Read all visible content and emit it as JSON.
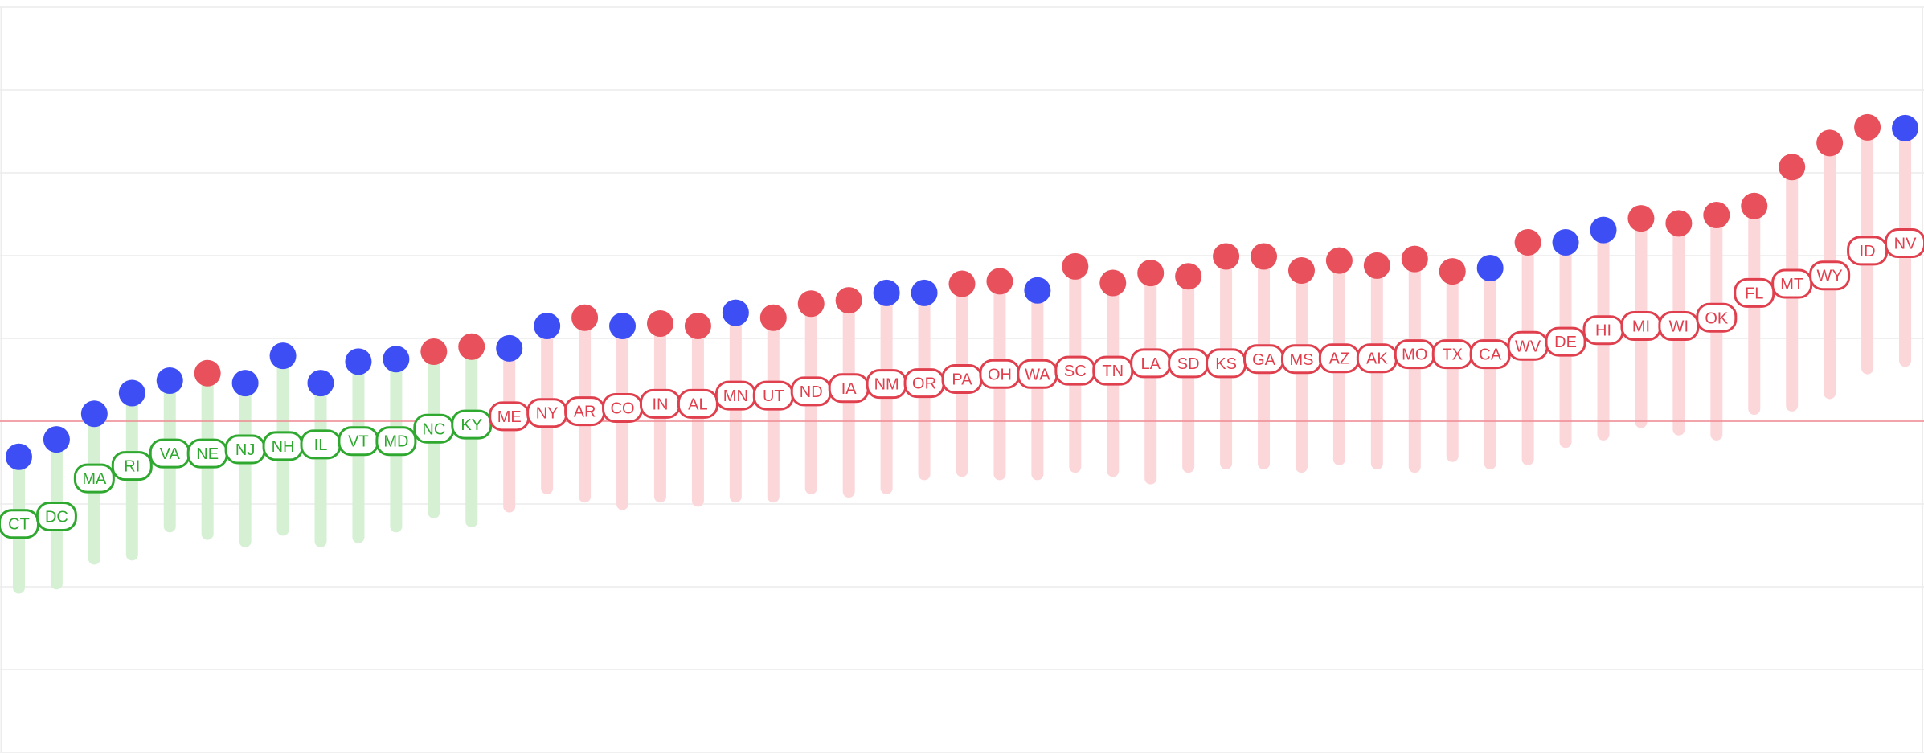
{
  "chart_data": {
    "type": "range-lollipop",
    "categories": [
      "CT",
      "DC",
      "MA",
      "RI",
      "VA",
      "NE",
      "NJ",
      "NH",
      "IL",
      "VT",
      "MD",
      "NC",
      "KY",
      "ME",
      "NY",
      "AR",
      "CO",
      "IN",
      "AL",
      "MN",
      "UT",
      "ND",
      "IA",
      "NM",
      "OR",
      "PA",
      "OH",
      "WA",
      "SC",
      "TN",
      "LA",
      "SD",
      "KS",
      "GA",
      "MS",
      "AZ",
      "AK",
      "MO",
      "TX",
      "CA",
      "WV",
      "DE",
      "HI",
      "MI",
      "WI",
      "OK",
      "FL",
      "MT",
      "WY",
      "ID",
      "NV"
    ],
    "values": [
      -1.24,
      -1.15,
      -0.69,
      -0.54,
      -0.39,
      -0.39,
      -0.34,
      -0.3,
      -0.28,
      -0.24,
      -0.24,
      -0.09,
      -0.04,
      0.06,
      0.1,
      0.12,
      0.16,
      0.21,
      0.21,
      0.31,
      0.31,
      0.36,
      0.4,
      0.45,
      0.46,
      0.51,
      0.57,
      0.57,
      0.61,
      0.61,
      0.7,
      0.7,
      0.7,
      0.75,
      0.75,
      0.76,
      0.76,
      0.81,
      0.81,
      0.81,
      0.91,
      0.96,
      1.1,
      1.15,
      1.15,
      1.25,
      1.55,
      1.66,
      1.76,
      2.06,
      2.15
    ],
    "highs": [
      -0.43,
      -0.22,
      0.09,
      0.34,
      0.49,
      0.58,
      0.46,
      0.79,
      0.46,
      0.72,
      0.75,
      0.84,
      0.9,
      0.88,
      1.15,
      1.25,
      1.15,
      1.18,
      1.15,
      1.31,
      1.25,
      1.42,
      1.46,
      1.55,
      1.55,
      1.66,
      1.69,
      1.58,
      1.87,
      1.67,
      1.79,
      1.75,
      1.99,
      1.99,
      1.82,
      1.94,
      1.88,
      1.96,
      1.81,
      1.85,
      2.16,
      2.16,
      2.31,
      2.45,
      2.39,
      2.49,
      2.6,
      3.07,
      3.36,
      3.55,
      3.54
    ],
    "lows": [
      -2.01,
      -1.96,
      -1.66,
      -1.61,
      -1.27,
      -1.36,
      -1.45,
      -1.31,
      -1.45,
      -1.4,
      -1.27,
      -1.1,
      -1.21,
      -1.03,
      -0.81,
      -0.91,
      -1.0,
      -0.91,
      -0.96,
      -0.91,
      -0.91,
      -0.81,
      -0.85,
      -0.81,
      -0.64,
      -0.6,
      -0.64,
      -0.64,
      -0.55,
      -0.6,
      -0.69,
      -0.55,
      -0.51,
      -0.51,
      -0.55,
      -0.46,
      -0.51,
      -0.55,
      -0.42,
      -0.51,
      -0.46,
      -0.25,
      -0.16,
      -0.01,
      -0.1,
      -0.16,
      0.15,
      0.19,
      0.34,
      0.64,
      0.73
    ],
    "dot_colors": [
      "#3d4ef5",
      "#3d4ef5",
      "#3d4ef5",
      "#3d4ef5",
      "#3d4ef5",
      "#e8505b",
      "#3d4ef5",
      "#3d4ef5",
      "#3d4ef5",
      "#3d4ef5",
      "#3d4ef5",
      "#e8505b",
      "#e8505b",
      "#3d4ef5",
      "#3d4ef5",
      "#e8505b",
      "#3d4ef5",
      "#e8505b",
      "#e8505b",
      "#3d4ef5",
      "#e8505b",
      "#e8505b",
      "#e8505b",
      "#3d4ef5",
      "#3d4ef5",
      "#e8505b",
      "#e8505b",
      "#3d4ef5",
      "#e8505b",
      "#e8505b",
      "#e8505b",
      "#e8505b",
      "#e8505b",
      "#e8505b",
      "#e8505b",
      "#e8505b",
      "#e8505b",
      "#e8505b",
      "#e8505b",
      "#3d4ef5",
      "#e8505b",
      "#3d4ef5",
      "#3d4ef5",
      "#e8505b",
      "#e8505b",
      "#e8505b",
      "#e8505b",
      "#e8505b",
      "#e8505b",
      "#e8505b",
      "#3d4ef5"
    ],
    "positive_color": "#e0404e",
    "positive_bar_color": "#fbd7da",
    "negative_color": "#2ea82e",
    "negative_bar_color": "#d5f0d3",
    "reference": 0,
    "reference_color": "#f08a92",
    "ylim": [
      -4,
      5
    ],
    "yticks": [
      -4,
      -3,
      -2,
      -1,
      0,
      1,
      2,
      3,
      4,
      5
    ],
    "grid": true
  }
}
